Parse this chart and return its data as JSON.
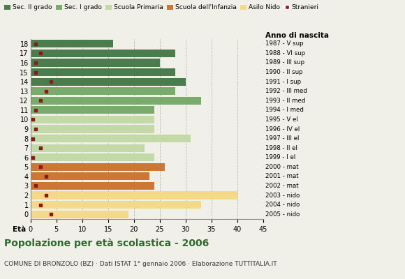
{
  "ages": [
    18,
    17,
    16,
    15,
    14,
    13,
    12,
    11,
    10,
    9,
    8,
    7,
    6,
    5,
    4,
    3,
    2,
    1,
    0
  ],
  "years": [
    "1987 - V sup",
    "1988 - VI sup",
    "1989 - III sup",
    "1990 - II sup",
    "1991 - I sup",
    "1992 - III med",
    "1993 - II med",
    "1994 - I med",
    "1995 - V el",
    "1996 - IV el",
    "1997 - III el",
    "1998 - II el",
    "1999 - I el",
    "2000 - mat",
    "2001 - mat",
    "2002 - mat",
    "2003 - nido",
    "2004 - nido",
    "2005 - nido"
  ],
  "bar_values": [
    16,
    28,
    25,
    28,
    30,
    28,
    33,
    24,
    24,
    24,
    31,
    22,
    24,
    26,
    23,
    24,
    40,
    33,
    19
  ],
  "bar_colors": [
    "#4a7c4e",
    "#4a7c4e",
    "#4a7c4e",
    "#4a7c4e",
    "#4a7c4e",
    "#7aaa6e",
    "#7aaa6e",
    "#7aaa6e",
    "#c3d9a8",
    "#c3d9a8",
    "#c3d9a8",
    "#c3d9a8",
    "#c3d9a8",
    "#cc7733",
    "#cc7733",
    "#cc7733",
    "#f5d98b",
    "#f5d98b",
    "#f5d98b"
  ],
  "stranieri_values": [
    1,
    2,
    1,
    1,
    4,
    3,
    2,
    1,
    0.5,
    1,
    0.5,
    2,
    0.5,
    2,
    3,
    1,
    3,
    2,
    4
  ],
  "stranieri_color": "#8b1a1a",
  "legend_labels": [
    "Sec. II grado",
    "Sec. I grado",
    "Scuola Primaria",
    "Scuola dell'Infanzia",
    "Asilo Nido",
    "Stranieri"
  ],
  "legend_colors": [
    "#4a7c4e",
    "#7aaa6e",
    "#c3d9a8",
    "#cc7733",
    "#f5d98b",
    "#8b1a1a"
  ],
  "title": "Popolazione per età scolastica - 2006",
  "subtitle": "COMUNE DI BRONZOLO (BZ) · Dati ISTAT 1° gennaio 2006 · Elaborazione TUTTITALIA.IT",
  "xlabel_left": "Età",
  "xlabel_right": "Anno di nascita",
  "xlim": [
    0,
    45
  ],
  "bg_color": "#f0f0e8",
  "grid_color": "#aaaaaa"
}
